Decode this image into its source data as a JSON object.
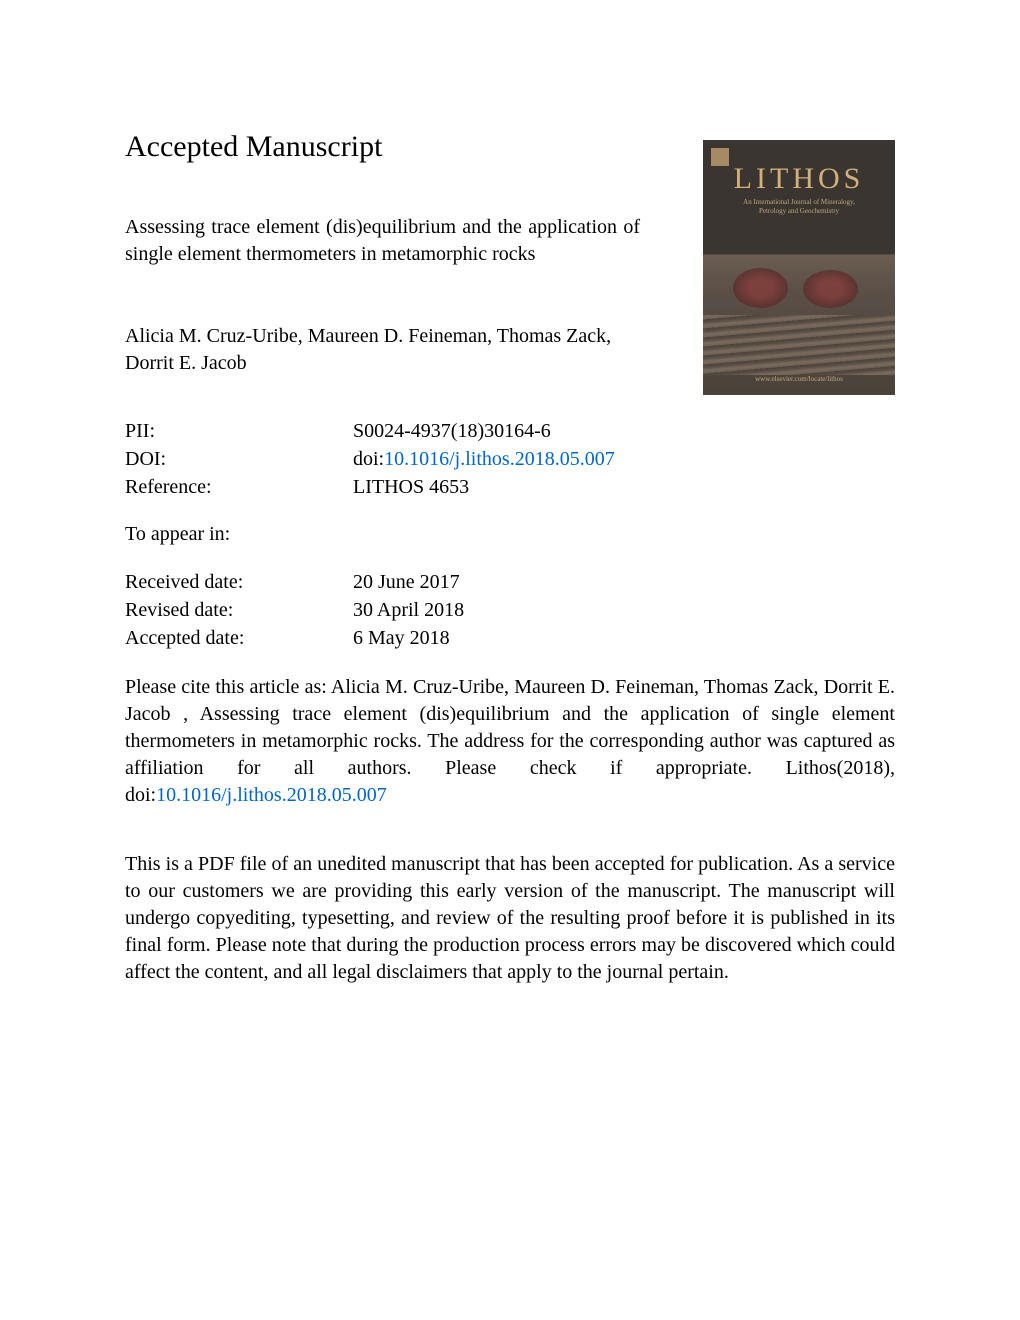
{
  "heading": "Accepted Manuscript",
  "article": {
    "title": "Assessing trace element (dis)equilibrium and the application of single element thermometers in metamorphic rocks",
    "authors": "Alicia M. Cruz-Uribe, Maureen D. Feineman, Thomas Zack, Dorrit E. Jacob"
  },
  "meta": {
    "pii_label": "PII:",
    "pii_value": "S0024-4937(18)30164-6",
    "doi_label": "DOI:",
    "doi_prefix": "doi:",
    "doi_link": "10.1016/j.lithos.2018.05.007",
    "ref_label": "Reference:",
    "ref_value": "LITHOS 4653",
    "appear_label": "To appear in:",
    "received_label": "Received date:",
    "received_value": "20 June 2017",
    "revised_label": "Revised date:",
    "revised_value": "30 April 2018",
    "accepted_label": "Accepted date:",
    "accepted_value": "6 May 2018"
  },
  "citation": {
    "text_before": "Please cite this article as: Alicia M. Cruz-Uribe, Maureen D. Feineman, Thomas Zack, Dorrit E. Jacob , Assessing trace element (dis)equilibrium and the application of single element thermometers in metamorphic rocks. The address for the corresponding author was captured as affiliation for all authors. Please check if appropriate. Lithos(2018), doi:",
    "link": "10.1016/j.lithos.2018.05.007"
  },
  "disclaimer": "This is a PDF file of an unedited manuscript that has been accepted for publication. As a service to our customers we are providing this early version of the manuscript. The manuscript will undergo copyediting, typesetting, and review of the resulting proof before it is published in its final form. Please note that during the production process errors may be discovered which could affect the content, and all legal disclaimers that apply to the journal pertain.",
  "cover": {
    "journal_title": "LITHOS",
    "subtitle_line1": "An International Journal of Mineralogy,",
    "subtitle_line2": "Petrology and Geochemistry",
    "footer": "www.elsevier.com/locate/lithos"
  },
  "colors": {
    "link": "#0066cc",
    "text": "#000000",
    "background": "#ffffff"
  },
  "typography": {
    "heading_fontsize": 30,
    "body_fontsize": 20,
    "font_family": "Times New Roman"
  }
}
